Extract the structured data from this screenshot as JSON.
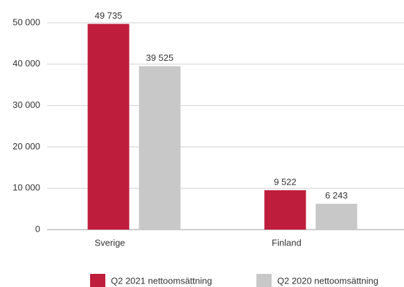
{
  "chart_data": {
    "type": "bar",
    "categories": [
      "Sverige",
      "Finland"
    ],
    "series": [
      {
        "name": "Q2 2021 nettoomsättning",
        "color": "#be1e3c",
        "values": [
          49735,
          9522
        ],
        "value_labels": [
          "49 735",
          "9 522"
        ]
      },
      {
        "name": "Q2 2020 nettoomsättning",
        "color": "#c8c8c8",
        "values": [
          39525,
          6243
        ],
        "value_labels": [
          "39 525",
          "6 243"
        ]
      }
    ],
    "ylim": [
      0,
      50000
    ],
    "yticks": [
      0,
      {
        "value": 10000,
        "label": "10 000"
      },
      {
        "value": 20000,
        "label": "20 000"
      },
      {
        "value": 30000,
        "label": "30 000"
      },
      {
        "value": 40000,
        "label": "40 000"
      },
      {
        "value": 50000,
        "label": "50 000"
      }
    ],
    "grid": true,
    "legend": "bottom"
  }
}
